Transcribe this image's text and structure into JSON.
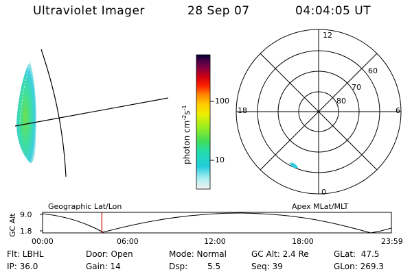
{
  "header": {
    "instrument": "Ultraviolet Imager",
    "date": "28 Sep 07",
    "time": "04:04:05 UT"
  },
  "colors": {
    "line": "#000000",
    "current_time_marker": "#cc0000",
    "aurora_palette": [
      "#ffffff",
      "#66ddee",
      "#22ccdd",
      "#33dd99",
      "#88ee44",
      "#ccee22",
      "#ffdd00",
      "#ffaa00",
      "#ff7700",
      "#ff2200",
      "#cc0000",
      "#990033",
      "#660033",
      "#330033",
      "#000000"
    ]
  },
  "colorbar": {
    "unit_label": "photon cm",
    "exp1": "-2",
    "unit_mid": "s",
    "exp2": "-1",
    "ticks": [
      {
        "label": "100",
        "value": 100
      },
      {
        "label": "10",
        "value": 10
      }
    ]
  },
  "polar_plot": {
    "mlt_labels": {
      "top": "12",
      "right": "6",
      "bottom": "0",
      "left": "18"
    },
    "lat_labels": [
      "60",
      "70",
      "80"
    ]
  },
  "timeline": {
    "left_title": "Geographic Lat/Lon",
    "right_title": "Apex MLat/MLT",
    "ylabel": "GC Alt",
    "y_ticks": [
      "9.0",
      "1.8"
    ],
    "x_ticks": [
      "00:00",
      "06:00",
      "12:00",
      "18:00",
      "23:59"
    ],
    "current_time_fraction": 0.17
  },
  "info": {
    "flt": "Flt: LBHL",
    "ip": "IP: 36.0",
    "door": "Door: Open",
    "gain": "Gain: 14",
    "mode": "Mode: Normal",
    "dsp_label": "Dsp:",
    "dsp_value": "5.5",
    "gc_alt": "GC Alt: 2.4 Re",
    "seq": "Seq: 39",
    "glat": "GLat:  47.5",
    "glon": "GLon: 269.3"
  }
}
